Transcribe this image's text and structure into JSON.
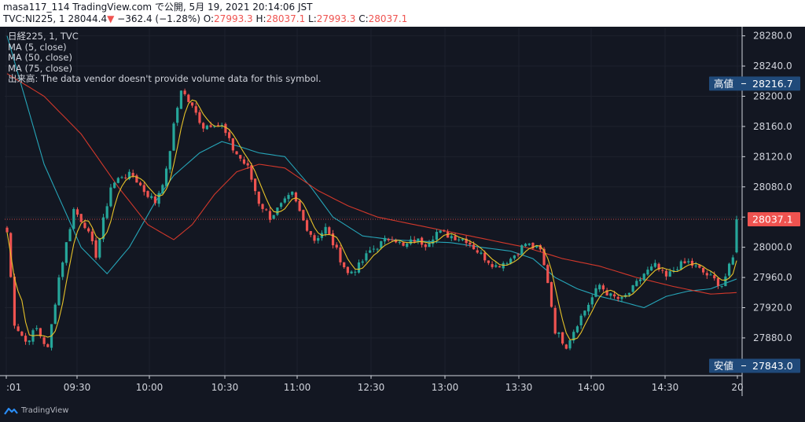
{
  "header": {
    "line1": "masa117_114 TradingView.com で公開, 5月 19, 2021 20:14:06 JST",
    "symbol": "TVC:NI225, 1",
    "last": "28044.4",
    "change_arrow": "▼",
    "change": "−362.4 (−1.28%)",
    "o_label": "O:",
    "o_value": "27993.3",
    "h_label": "H:",
    "h_value": "28037.1",
    "l_label": "L:",
    "l_value": "27993.3",
    "c_label": "C:",
    "c_value": "28037.1"
  },
  "legend": {
    "title": "日経225, 1, TVC",
    "ma5": "MA (5, close)",
    "ma50": "MA (50, close)",
    "ma75": "MA (75, close)",
    "volume": "出来高: The data vendor doesn't provide volume data for this symbol."
  },
  "brand": {
    "name": "TradingView",
    "icon": "tradingview-logo-icon"
  },
  "colors": {
    "up": "#26a69a",
    "down": "#ef5350",
    "ma5": "#e6c229",
    "ma50": "#26a5b8",
    "ma75": "#d2382b",
    "badge": "#204a7a",
    "last_badge": "#ef5350"
  },
  "chart_data": {
    "type": "candlestick",
    "ylim": [
      27830,
      28290
    ],
    "y_ticks": [
      "28280.0",
      "28240.0",
      "28200.0",
      "28160.0",
      "28120.0",
      "28080.0",
      "28040.0",
      "28000.0",
      "27960.0",
      "27920.0",
      "27880.0"
    ],
    "x_ticks": [
      ":01",
      "09:30",
      "10:00",
      "10:30",
      "11:00",
      "12:30",
      "13:00",
      "13:30",
      "14:00",
      "14:30",
      "20"
    ],
    "high_label": "高値",
    "high_value": "28216.7",
    "low_label": "安値",
    "low_value": "27843.0",
    "last_value": "28037.1",
    "close_anchors": [
      [
        0,
        28020
      ],
      [
        2,
        27900
      ],
      [
        5,
        27875
      ],
      [
        8,
        27892
      ],
      [
        11,
        27865
      ],
      [
        14,
        27960
      ],
      [
        18,
        28050
      ],
      [
        21,
        28030
      ],
      [
        24,
        27990
      ],
      [
        28,
        28080
      ],
      [
        31,
        28095
      ],
      [
        34,
        28095
      ],
      [
        37,
        28075
      ],
      [
        40,
        28060
      ],
      [
        43,
        28100
      ],
      [
        45,
        28160
      ],
      [
        47,
        28210
      ],
      [
        50,
        28185
      ],
      [
        53,
        28160
      ],
      [
        56,
        28165
      ],
      [
        58,
        28160
      ],
      [
        61,
        28130
      ],
      [
        65,
        28105
      ],
      [
        68,
        28060
      ],
      [
        71,
        28040
      ],
      [
        74,
        28055
      ],
      [
        77,
        28070
      ],
      [
        80,
        28035
      ],
      [
        83,
        28010
      ],
      [
        86,
        28025
      ],
      [
        89,
        27995
      ],
      [
        92,
        27965
      ],
      [
        95,
        27975
      ],
      [
        98,
        27995
      ],
      [
        101,
        28005
      ],
      [
        104,
        28015
      ],
      [
        107,
        28000
      ],
      [
        110,
        28010
      ],
      [
        113,
        28005
      ],
      [
        116,
        28020
      ],
      [
        120,
        28015
      ],
      [
        124,
        28010
      ],
      [
        128,
        27990
      ],
      [
        132,
        27975
      ],
      [
        136,
        27985
      ],
      [
        140,
        28005
      ],
      [
        144,
        27995
      ],
      [
        146,
        27955
      ],
      [
        148,
        27890
      ],
      [
        151,
        27870
      ],
      [
        154,
        27900
      ],
      [
        157,
        27925
      ],
      [
        160,
        27950
      ],
      [
        163,
        27935
      ],
      [
        166,
        27930
      ],
      [
        169,
        27945
      ],
      [
        172,
        27965
      ],
      [
        175,
        27975
      ],
      [
        178,
        27960
      ],
      [
        181,
        27975
      ],
      [
        184,
        27980
      ],
      [
        187,
        27970
      ],
      [
        190,
        27960
      ],
      [
        193,
        27950
      ],
      [
        196,
        27985
      ],
      [
        197,
        28037
      ]
    ],
    "ma50_anchors": [
      [
        0,
        28280
      ],
      [
        10,
        28110
      ],
      [
        20,
        28000
      ],
      [
        27,
        27965
      ],
      [
        33,
        28000
      ],
      [
        40,
        28060
      ],
      [
        45,
        28095
      ],
      [
        52,
        28125
      ],
      [
        58,
        28140
      ],
      [
        63,
        28133
      ],
      [
        68,
        28125
      ],
      [
        75,
        28120
      ],
      [
        82,
        28080
      ],
      [
        88,
        28040
      ],
      [
        96,
        28015
      ],
      [
        104,
        28010
      ],
      [
        112,
        28008
      ],
      [
        120,
        28006
      ],
      [
        128,
        28000
      ],
      [
        136,
        27995
      ],
      [
        142,
        27985
      ],
      [
        148,
        27960
      ],
      [
        154,
        27945
      ],
      [
        160,
        27935
      ],
      [
        166,
        27928
      ],
      [
        172,
        27920
      ],
      [
        178,
        27935
      ],
      [
        184,
        27942
      ],
      [
        190,
        27945
      ],
      [
        197,
        27958
      ]
    ],
    "ma75_anchors": [
      [
        0,
        28230
      ],
      [
        10,
        28200
      ],
      [
        20,
        28150
      ],
      [
        30,
        28080
      ],
      [
        38,
        28030
      ],
      [
        45,
        28010
      ],
      [
        50,
        28030
      ],
      [
        56,
        28070
      ],
      [
        62,
        28100
      ],
      [
        68,
        28110
      ],
      [
        75,
        28105
      ],
      [
        84,
        28075
      ],
      [
        92,
        28055
      ],
      [
        100,
        28040
      ],
      [
        110,
        28030
      ],
      [
        120,
        28020
      ],
      [
        130,
        28010
      ],
      [
        140,
        28000
      ],
      [
        150,
        27985
      ],
      [
        160,
        27975
      ],
      [
        170,
        27960
      ],
      [
        180,
        27948
      ],
      [
        190,
        27938
      ],
      [
        197,
        27940
      ]
    ]
  }
}
